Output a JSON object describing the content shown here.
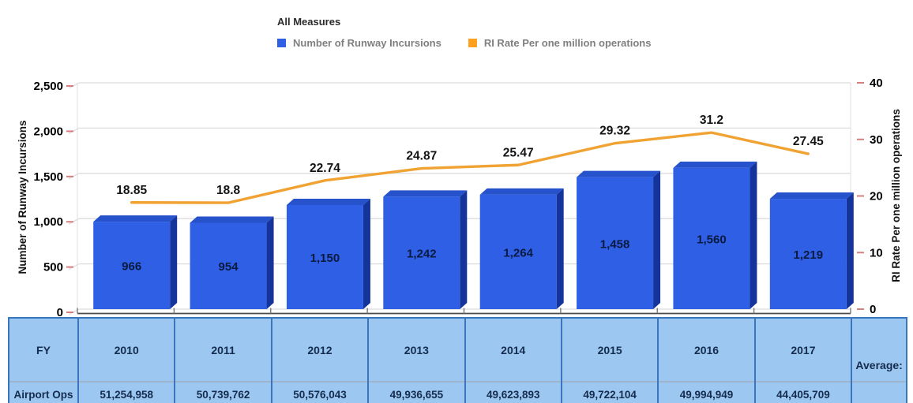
{
  "header": {
    "title": "All Measures",
    "legend": [
      {
        "label": "Number of Runway Incursions",
        "color": "#2e5fe5",
        "series": "incursions"
      },
      {
        "label": "RI Rate Per one million operations",
        "color": "#ffa01e",
        "series": "ri_rate"
      }
    ]
  },
  "chart_data": {
    "type": "bar",
    "subtype": "3d-bar-with-line-overlay",
    "title": "All Measures",
    "categories": [
      "2010",
      "2011",
      "2012",
      "2013",
      "2014",
      "2015",
      "2016",
      "2017"
    ],
    "series": [
      {
        "name": "Number of Runway Incursions",
        "type": "bar",
        "axis": "left",
        "color": "#2e5fe5",
        "values": [
          966,
          954,
          1150,
          1242,
          1264,
          1458,
          1560,
          1219
        ],
        "labels": [
          "966",
          "954",
          "1,150",
          "1,242",
          "1,264",
          "1,458",
          "1,560",
          "1,219"
        ]
      },
      {
        "name": "RI Rate Per one million operations",
        "type": "line",
        "axis": "right",
        "color": "#f0a232",
        "values": [
          18.85,
          18.8,
          22.74,
          24.87,
          25.47,
          29.32,
          31.2,
          27.45
        ],
        "labels": [
          "18.85",
          "18.8",
          "22.74",
          "24.87",
          "25.47",
          "29.32",
          "31.2",
          "27.45"
        ]
      }
    ],
    "left_axis": {
      "title": "Number of Runway Incursions",
      "min": 0,
      "max": 2500,
      "tick_step": 500,
      "tick_labels": [
        "0",
        "500",
        "1,000",
        "1,500",
        "2,000",
        "2,500"
      ]
    },
    "right_axis": {
      "title": "RI Rate Per one million operations",
      "min": 0,
      "max": 40,
      "tick_step": 10,
      "tick_labels": [
        "0",
        "10",
        "20",
        "30",
        "40"
      ]
    },
    "grid": true,
    "legend_position": "top"
  },
  "table": {
    "fy_header": "FY",
    "ops_header": "Airport Ops",
    "average_label": "Average:",
    "average_value": "",
    "years": [
      "2010",
      "2011",
      "2012",
      "2013",
      "2014",
      "2015",
      "2016",
      "2017"
    ],
    "airport_ops": [
      "51,254,958",
      "50,739,762",
      "50,576,043",
      "49,936,655",
      "49,623,893",
      "49,722,104",
      "49,994,949",
      "44,405,709"
    ]
  },
  "colors": {
    "bar_front": "#2e5fe5",
    "bar_top": "#2652cb",
    "bar_side": "#14349c",
    "bar_label": "#0a1a40",
    "line": "#f0a232",
    "grid": "#dcdcdc",
    "wall": "#e4e4e4",
    "tick_dash": "#d4807e",
    "axis_text": "#000000",
    "baseline": "#4a4a4a",
    "table_fill": "#9cc7f0",
    "table_border": "#3a76bd",
    "table_text": "#152c4e"
  }
}
